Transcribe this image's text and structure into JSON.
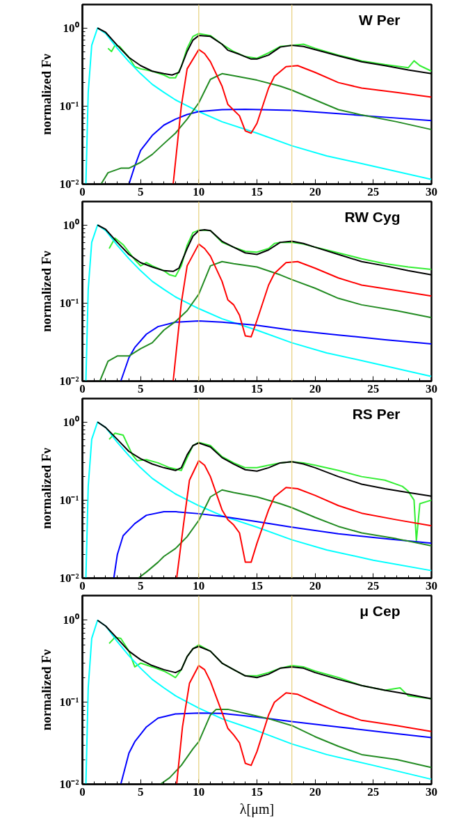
{
  "chart_data": [
    {
      "type": "line",
      "title": "W Per",
      "ylabel": "normalized Fν",
      "log": "y",
      "xlim": [
        0,
        30
      ],
      "ylim": [
        0.01,
        2
      ],
      "xticks": [
        0,
        5,
        10,
        15,
        20,
        25,
        30
      ],
      "yticks": [
        {
          "value": 0.01,
          "label": "10⁻²"
        },
        {
          "value": 0.1,
          "label": "10⁻¹"
        },
        {
          "value": 1,
          "label": "10⁰"
        }
      ],
      "ref_lines": [
        {
          "axis": "x",
          "value": 10,
          "color": "#e6cf7a"
        },
        {
          "axis": "x",
          "value": 18,
          "color": "#e6cf7a"
        }
      ],
      "series": [
        {
          "color": "#33ee33",
          "x": [
            2.2,
            2.5,
            2.8,
            3.2,
            4,
            4.5,
            5,
            6,
            7,
            7.5,
            8,
            8.5,
            9,
            9.5,
            10,
            11,
            12,
            13,
            14,
            15,
            16,
            17,
            18,
            19,
            20,
            22,
            24,
            26,
            28,
            28.5,
            29,
            30
          ],
          "values": [
            0.55,
            0.5,
            0.6,
            0.58,
            0.42,
            0.32,
            0.3,
            0.28,
            0.25,
            0.23,
            0.23,
            0.32,
            0.55,
            0.78,
            0.85,
            0.8,
            0.62,
            0.5,
            0.43,
            0.41,
            0.48,
            0.58,
            0.6,
            0.62,
            0.55,
            0.45,
            0.38,
            0.34,
            0.31,
            0.38,
            0.33,
            0.28
          ]
        },
        {
          "color": "#00ffff",
          "x": [
            0.3,
            0.5,
            0.8,
            1.3,
            2,
            3,
            4,
            5,
            6,
            7,
            8,
            10,
            12,
            15,
            18,
            21,
            25,
            30
          ],
          "values": [
            0.01,
            0.15,
            0.6,
            1.0,
            0.85,
            0.55,
            0.37,
            0.26,
            0.19,
            0.15,
            0.12,
            0.085,
            0.063,
            0.045,
            0.031,
            0.023,
            0.017,
            0.0115
          ]
        },
        {
          "color": "#0000ff",
          "x": [
            4,
            4.5,
            5,
            6,
            7,
            8,
            9,
            10,
            12,
            14,
            18,
            22,
            26,
            30
          ],
          "values": [
            0.01,
            0.017,
            0.027,
            0.042,
            0.057,
            0.068,
            0.078,
            0.085,
            0.09,
            0.091,
            0.088,
            0.08,
            0.072,
            0.065
          ]
        },
        {
          "color": "#228b22",
          "x": [
            1.6,
            2.2,
            3.3,
            4,
            5,
            6,
            7,
            8,
            9,
            10,
            11,
            12,
            13,
            15,
            17,
            18,
            20,
            22,
            24,
            27,
            30
          ],
          "values": [
            0.01,
            0.014,
            0.016,
            0.016,
            0.019,
            0.024,
            0.033,
            0.045,
            0.068,
            0.11,
            0.22,
            0.26,
            0.245,
            0.215,
            0.18,
            0.16,
            0.12,
            0.09,
            0.077,
            0.063,
            0.05
          ]
        },
        {
          "color": "#ff0000",
          "x": [
            7.8,
            8.5,
            9,
            10,
            10.5,
            11,
            12,
            12.5,
            13.5,
            14,
            14.5,
            15,
            16,
            16.5,
            17.5,
            18.5,
            20,
            22,
            24,
            27,
            30
          ],
          "values": [
            0.01,
            0.1,
            0.3,
            0.53,
            0.47,
            0.37,
            0.18,
            0.105,
            0.075,
            0.048,
            0.045,
            0.06,
            0.17,
            0.24,
            0.32,
            0.33,
            0.27,
            0.2,
            0.17,
            0.15,
            0.13
          ]
        },
        {
          "color": "#000000",
          "x": [
            1.3,
            2,
            3,
            4,
            5,
            6,
            7,
            7.7,
            8.3,
            9,
            9.5,
            10,
            11,
            12,
            12.5,
            13.5,
            14.5,
            15,
            16,
            17,
            18,
            19,
            20,
            22,
            24,
            26,
            28,
            30
          ],
          "values": [
            1.0,
            0.88,
            0.6,
            0.42,
            0.33,
            0.28,
            0.26,
            0.25,
            0.27,
            0.5,
            0.7,
            0.8,
            0.78,
            0.62,
            0.52,
            0.46,
            0.4,
            0.4,
            0.45,
            0.57,
            0.6,
            0.58,
            0.53,
            0.44,
            0.37,
            0.33,
            0.29,
            0.26
          ]
        }
      ]
    },
    {
      "type": "line",
      "title": "RW Cyg",
      "ylabel": "normalized Fν",
      "log": "y",
      "xlim": [
        0,
        30
      ],
      "ylim": [
        0.01,
        2
      ],
      "xticks": [
        0,
        5,
        10,
        15,
        20,
        25,
        30
      ],
      "yticks": [
        {
          "value": 0.01,
          "label": "10⁻²"
        },
        {
          "value": 0.1,
          "label": "10⁻¹"
        },
        {
          "value": 1,
          "label": "10⁰"
        }
      ],
      "ref_lines": [
        {
          "axis": "x",
          "value": 10,
          "color": "#e6cf7a"
        },
        {
          "axis": "x",
          "value": 18,
          "color": "#e6cf7a"
        }
      ],
      "series": [
        {
          "color": "#33ee33",
          "x": [
            2.3,
            2.8,
            3.5,
            4.5,
            5,
            5.5,
            6,
            7,
            7.5,
            8,
            8.5,
            9,
            9.5,
            10,
            11,
            12,
            13,
            14,
            15,
            16,
            16.5,
            17,
            18,
            19,
            20,
            22,
            24,
            26,
            28,
            30
          ],
          "values": [
            0.5,
            0.68,
            0.56,
            0.36,
            0.3,
            0.33,
            0.3,
            0.26,
            0.23,
            0.22,
            0.3,
            0.55,
            0.8,
            0.86,
            0.85,
            0.6,
            0.52,
            0.46,
            0.45,
            0.5,
            0.58,
            0.6,
            0.6,
            0.57,
            0.52,
            0.44,
            0.37,
            0.32,
            0.29,
            0.27
          ]
        },
        {
          "color": "#00ffff",
          "x": [
            0.3,
            0.5,
            0.8,
            1.3,
            2,
            3,
            4,
            5,
            6,
            7,
            8,
            10,
            12,
            15,
            18,
            21,
            25,
            30
          ],
          "values": [
            0.01,
            0.15,
            0.6,
            1.0,
            0.85,
            0.55,
            0.37,
            0.26,
            0.19,
            0.15,
            0.12,
            0.085,
            0.063,
            0.045,
            0.031,
            0.023,
            0.017,
            0.0115
          ]
        },
        {
          "color": "#0000ff",
          "x": [
            3.3,
            4,
            4.5,
            5.5,
            6.5,
            8,
            10,
            12,
            15,
            18,
            22,
            26,
            30
          ],
          "values": [
            0.01,
            0.02,
            0.027,
            0.04,
            0.05,
            0.057,
            0.059,
            0.057,
            0.052,
            0.045,
            0.039,
            0.034,
            0.03
          ]
        },
        {
          "color": "#228b22",
          "x": [
            1.5,
            2.2,
            3,
            4,
            5,
            6,
            7,
            8,
            9,
            10,
            11,
            12,
            13,
            15,
            17,
            18,
            20,
            22,
            24,
            27,
            30
          ],
          "values": [
            0.01,
            0.018,
            0.021,
            0.021,
            0.026,
            0.031,
            0.045,
            0.058,
            0.08,
            0.13,
            0.3,
            0.34,
            0.32,
            0.29,
            0.23,
            0.2,
            0.155,
            0.115,
            0.095,
            0.08,
            0.065
          ]
        },
        {
          "color": "#ff0000",
          "x": [
            7.8,
            8.5,
            9,
            10,
            10.5,
            11,
            12,
            12.5,
            13,
            13.5,
            14,
            14.5,
            15,
            16,
            16.5,
            17.5,
            18.5,
            20,
            22,
            24,
            27,
            30
          ],
          "values": [
            0.01,
            0.1,
            0.3,
            0.57,
            0.5,
            0.4,
            0.19,
            0.11,
            0.095,
            0.07,
            0.038,
            0.037,
            0.06,
            0.17,
            0.24,
            0.33,
            0.34,
            0.28,
            0.21,
            0.17,
            0.145,
            0.123
          ]
        },
        {
          "color": "#000000",
          "x": [
            1.3,
            2,
            3,
            4,
            5,
            6,
            7,
            7.8,
            8.3,
            9,
            9.5,
            10,
            10.5,
            11,
            12,
            13,
            14,
            15,
            16,
            17,
            18,
            19,
            20,
            22,
            24,
            26,
            28,
            30
          ],
          "values": [
            1.0,
            0.88,
            0.6,
            0.42,
            0.33,
            0.29,
            0.26,
            0.255,
            0.28,
            0.5,
            0.72,
            0.85,
            0.87,
            0.85,
            0.62,
            0.52,
            0.44,
            0.42,
            0.48,
            0.6,
            0.62,
            0.58,
            0.52,
            0.42,
            0.34,
            0.3,
            0.26,
            0.23
          ]
        }
      ]
    },
    {
      "type": "line",
      "title": "RS Per",
      "ylabel": "normalized Fν",
      "log": "y",
      "xlim": [
        0,
        30
      ],
      "ylim": [
        0.01,
        2
      ],
      "xticks": [
        0,
        5,
        10,
        15,
        20,
        25,
        30
      ],
      "yticks": [
        {
          "value": 0.01,
          "label": "10⁻²"
        },
        {
          "value": 0.1,
          "label": "10⁻¹"
        },
        {
          "value": 1,
          "label": "10⁰"
        }
      ],
      "ref_lines": [
        {
          "axis": "x",
          "value": 10,
          "color": "#e6cf7a"
        },
        {
          "axis": "x",
          "value": 18,
          "color": "#e6cf7a"
        }
      ],
      "series": [
        {
          "color": "#33ee33",
          "x": [
            2.3,
            2.8,
            3.5,
            4.3,
            4.7,
            5.5,
            6.5,
            7.5,
            8.5,
            9,
            9.5,
            10,
            11,
            12,
            13,
            14,
            15,
            16,
            17,
            18,
            19,
            20,
            22,
            24,
            26,
            27.5,
            28,
            28.5,
            28.7,
            29,
            30
          ],
          "values": [
            0.6,
            0.72,
            0.68,
            0.38,
            0.32,
            0.33,
            0.3,
            0.26,
            0.24,
            0.35,
            0.5,
            0.55,
            0.5,
            0.36,
            0.3,
            0.26,
            0.26,
            0.28,
            0.3,
            0.31,
            0.3,
            0.28,
            0.24,
            0.2,
            0.18,
            0.15,
            0.13,
            0.1,
            0.03,
            0.09,
            0.1
          ]
        },
        {
          "color": "#00ffff",
          "x": [
            0.3,
            0.5,
            0.8,
            1.3,
            2,
            3,
            4,
            5,
            6,
            7,
            8,
            10,
            12,
            15,
            18,
            21,
            25,
            30
          ],
          "values": [
            0.01,
            0.15,
            0.6,
            1.0,
            0.85,
            0.55,
            0.37,
            0.26,
            0.19,
            0.15,
            0.12,
            0.085,
            0.063,
            0.045,
            0.031,
            0.023,
            0.017,
            0.0125
          ]
        },
        {
          "color": "#0000ff",
          "x": [
            2.7,
            3,
            3.5,
            4.5,
            5.5,
            7,
            8,
            10,
            12,
            15,
            18,
            22,
            26,
            30
          ],
          "values": [
            0.01,
            0.02,
            0.035,
            0.05,
            0.064,
            0.071,
            0.071,
            0.067,
            0.062,
            0.053,
            0.045,
            0.037,
            0.032,
            0.028
          ]
        },
        {
          "color": "#228b22",
          "x": [
            4.8,
            5.5,
            6.5,
            7,
            8,
            9,
            10,
            11,
            12,
            13,
            15,
            17,
            18,
            20,
            22,
            24,
            27,
            30
          ],
          "values": [
            0.01,
            0.012,
            0.016,
            0.019,
            0.024,
            0.034,
            0.055,
            0.11,
            0.135,
            0.125,
            0.11,
            0.09,
            0.08,
            0.06,
            0.046,
            0.038,
            0.032,
            0.026
          ]
        },
        {
          "color": "#ff0000",
          "x": [
            8.1,
            8.7,
            9.2,
            10,
            10.5,
            11,
            12,
            12.5,
            13,
            13.5,
            14,
            14.5,
            15,
            16,
            16.5,
            17.5,
            18.5,
            20,
            22,
            24,
            27,
            30
          ],
          "values": [
            0.01,
            0.05,
            0.18,
            0.32,
            0.28,
            0.2,
            0.075,
            0.056,
            0.048,
            0.038,
            0.016,
            0.016,
            0.028,
            0.075,
            0.11,
            0.145,
            0.14,
            0.115,
            0.085,
            0.068,
            0.056,
            0.047
          ]
        },
        {
          "color": "#000000",
          "x": [
            1.3,
            2,
            3,
            4,
            5,
            6,
            7,
            8,
            8.5,
            9,
            9.5,
            10,
            11,
            12,
            13,
            14,
            15,
            16,
            17,
            18,
            19,
            20,
            22,
            24,
            26,
            28,
            30
          ],
          "values": [
            1.0,
            0.85,
            0.6,
            0.42,
            0.34,
            0.29,
            0.26,
            0.24,
            0.26,
            0.38,
            0.5,
            0.54,
            0.48,
            0.35,
            0.29,
            0.245,
            0.235,
            0.26,
            0.3,
            0.31,
            0.29,
            0.26,
            0.2,
            0.16,
            0.14,
            0.125,
            0.112
          ]
        }
      ]
    },
    {
      "type": "line",
      "title": "μ Cep",
      "xlabel": "λ[μm]",
      "ylabel": "normalized Fν",
      "log": "y",
      "xlim": [
        0,
        30
      ],
      "ylim": [
        0.01,
        2
      ],
      "xticks": [
        0,
        5,
        10,
        15,
        20,
        25,
        30
      ],
      "yticks": [
        {
          "value": 0.01,
          "label": "10⁻²"
        },
        {
          "value": 0.1,
          "label": "10⁻¹"
        },
        {
          "value": 1,
          "label": "10⁰"
        }
      ],
      "ref_lines": [
        {
          "axis": "x",
          "value": 10,
          "color": "#e6cf7a"
        },
        {
          "axis": "x",
          "value": 18,
          "color": "#e6cf7a"
        }
      ],
      "series": [
        {
          "color": "#33ee33",
          "x": [
            2.3,
            2.8,
            3.3,
            4,
            4.5,
            5,
            6,
            7,
            7.5,
            8,
            8.5,
            9,
            9.5,
            10,
            11,
            12,
            13,
            14,
            15,
            16,
            17,
            18,
            19,
            20,
            22,
            24,
            26,
            27.3,
            28,
            30
          ],
          "values": [
            0.52,
            0.62,
            0.6,
            0.42,
            0.27,
            0.3,
            0.27,
            0.24,
            0.22,
            0.2,
            0.25,
            0.36,
            0.45,
            0.5,
            0.42,
            0.3,
            0.25,
            0.21,
            0.21,
            0.23,
            0.26,
            0.28,
            0.27,
            0.24,
            0.2,
            0.16,
            0.14,
            0.15,
            0.12,
            0.11
          ]
        },
        {
          "color": "#00ffff",
          "x": [
            0.3,
            0.5,
            0.8,
            1.3,
            2,
            3,
            4,
            5,
            6,
            7,
            8,
            10,
            12,
            15,
            18,
            21,
            25,
            30
          ],
          "values": [
            0.01,
            0.15,
            0.6,
            1.0,
            0.85,
            0.55,
            0.37,
            0.26,
            0.19,
            0.15,
            0.12,
            0.085,
            0.063,
            0.045,
            0.031,
            0.023,
            0.017,
            0.0115
          ]
        },
        {
          "color": "#0000ff",
          "x": [
            3.3,
            4,
            4.5,
            5.5,
            6.5,
            8,
            10,
            12,
            15,
            18,
            22,
            26,
            30
          ],
          "values": [
            0.01,
            0.024,
            0.033,
            0.05,
            0.064,
            0.072,
            0.074,
            0.073,
            0.066,
            0.058,
            0.05,
            0.043,
            0.037
          ]
        },
        {
          "color": "#228b22",
          "x": [
            6.7,
            7.5,
            8.5,
            9.5,
            10,
            11,
            11.5,
            12.5,
            14,
            16,
            18,
            20,
            22,
            24,
            27,
            30
          ],
          "values": [
            0.01,
            0.012,
            0.017,
            0.027,
            0.033,
            0.07,
            0.082,
            0.082,
            0.073,
            0.063,
            0.052,
            0.038,
            0.029,
            0.023,
            0.02,
            0.016
          ]
        },
        {
          "color": "#ff0000",
          "x": [
            8.1,
            8.6,
            9.2,
            10,
            10.5,
            11,
            12,
            12.5,
            13,
            13.5,
            14,
            14.5,
            15,
            16,
            16.5,
            17.5,
            18.5,
            20,
            22,
            24,
            27,
            30
          ],
          "values": [
            0.01,
            0.05,
            0.17,
            0.28,
            0.25,
            0.18,
            0.075,
            0.048,
            0.04,
            0.032,
            0.018,
            0.017,
            0.025,
            0.07,
            0.1,
            0.13,
            0.125,
            0.1,
            0.075,
            0.06,
            0.052,
            0.044
          ]
        },
        {
          "color": "#000000",
          "x": [
            1.3,
            2,
            3,
            4,
            5,
            6,
            7,
            8,
            8.5,
            9,
            9.5,
            10,
            11,
            12,
            13,
            14,
            15,
            16,
            17,
            18,
            19,
            20,
            22,
            24,
            26,
            28,
            30
          ],
          "values": [
            1.0,
            0.85,
            0.6,
            0.42,
            0.33,
            0.28,
            0.25,
            0.23,
            0.25,
            0.36,
            0.45,
            0.48,
            0.42,
            0.3,
            0.25,
            0.21,
            0.2,
            0.22,
            0.26,
            0.27,
            0.26,
            0.23,
            0.19,
            0.16,
            0.14,
            0.125,
            0.11
          ]
        }
      ]
    }
  ]
}
